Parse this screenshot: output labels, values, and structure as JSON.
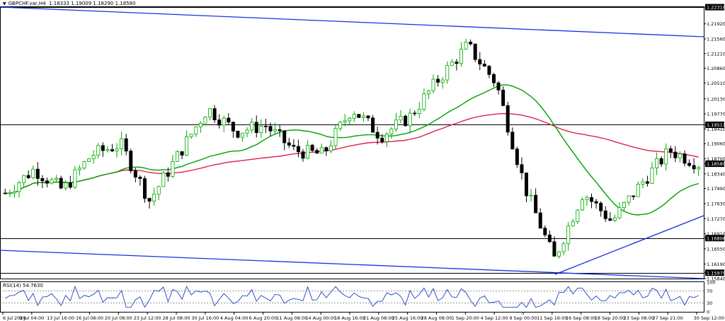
{
  "header": {
    "symbol": "GBPCHF.var,H4",
    "ohlc": "1.18333 1.19009 1.18290 1.18580"
  },
  "rsi": {
    "label": "RSI(14) 54.7630",
    "ticks": [
      "100",
      "70",
      "30",
      "0"
    ]
  },
  "price_axis": {
    "ticks": [
      "1.22318",
      "1.21920",
      "1.21560",
      "1.21210",
      "1.20860",
      "1.20510",
      "1.20130",
      "1.19770",
      "1.19511",
      "1.19410",
      "1.19060",
      "1.18700",
      "1.18580",
      "1.18340",
      "1.17990",
      "1.17630",
      "1.17270",
      "1.16910",
      "1.16806",
      "1.16550",
      "1.16190",
      "1.15979",
      "1.15840"
    ],
    "highlight": [
      "1.22318",
      "1.19511",
      "1.18580",
      "1.16806",
      "1.15979"
    ]
  },
  "time_axis": {
    "labels": [
      "6 Jul 2020",
      "9 Jul 04:00",
      "13 Jul 16:00",
      "16 Jul 08:00",
      "20 Jul 08:00",
      "23 Jul 12:00",
      "28 Jul 08:00",
      "30 Jul 16:00",
      "4 Aug 04:00",
      "6 Aug 20:00",
      "11 Aug 08:00",
      "14 Aug 00:00",
      "18 Aug 16:00",
      "21 Aug 08:00",
      "25 Aug 16:00",
      "28 Aug 08:00",
      "1 Sep 20:00",
      "4 Sep 12:00",
      "9 Sep 00:00",
      "11 Sep 16:00",
      "16 Sep 08:00",
      "18 Sep 20:00",
      "23 Sep 08:00",
      "27 Sep 21:00",
      "30 Sep 12:00"
    ]
  },
  "colors": {
    "bull": "#00aa00",
    "bear": "#000000",
    "ma_fast": "#00a000",
    "ma_slow": "#e0204a",
    "trendline": "#1a2ee0",
    "horizontal": "#000000",
    "rsi": "#2040c0"
  },
  "chart_data": {
    "type": "candlestick",
    "symbol": "GBPCHF",
    "timeframe": "H4",
    "x_range": [
      "6 Jul 2020",
      "30 Sep 12:00"
    ],
    "ylim": [
      1.1584,
      1.2232
    ],
    "horizontal_levels": [
      1.22318,
      1.19511,
      1.16806,
      1.15979
    ],
    "current_price": 1.1858,
    "close_path": [
      [
        "6 Jul 2020",
        1.1788
      ],
      [
        "9 Jul 04:00",
        1.1845
      ],
      [
        "13 Jul 16:00",
        1.1795
      ],
      [
        "16 Jul 08:00",
        1.188
      ],
      [
        "20 Jul 08:00",
        1.1905
      ],
      [
        "23 Jul 12:00",
        1.177
      ],
      [
        "28 Jul 08:00",
        1.188
      ],
      [
        "30 Jul 16:00",
        1.199
      ],
      [
        "4 Aug 04:00",
        1.1935
      ],
      [
        "6 Aug 20:00",
        1.195
      ],
      [
        "11 Aug 08:00",
        1.189
      ],
      [
        "14 Aug 00:00",
        1.188
      ],
      [
        "18 Aug 16:00",
        1.199
      ],
      [
        "21 Aug 08:00",
        1.1925
      ],
      [
        "25 Aug 16:00",
        1.197
      ],
      [
        "28 Aug 08:00",
        1.206
      ],
      [
        "1 Sep 20:00",
        1.214
      ],
      [
        "4 Sep 12:00",
        1.205
      ],
      [
        "9 Sep 00:00",
        1.18
      ],
      [
        "11 Sep 16:00",
        1.163
      ],
      [
        "16 Sep 08:00",
        1.179
      ],
      [
        "18 Sep 20:00",
        1.172
      ],
      [
        "23 Sep 08:00",
        1.181
      ],
      [
        "27 Sep 21:00",
        1.189
      ],
      [
        "30 Sep 12:00",
        1.1858
      ]
    ],
    "rsi": {
      "period": 14,
      "value": 54.763,
      "levels": [
        70,
        30
      ]
    }
  }
}
